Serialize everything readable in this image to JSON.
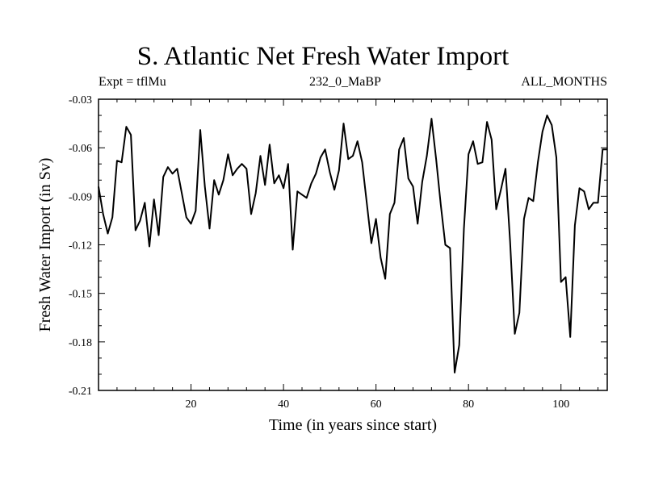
{
  "chart_data": {
    "type": "line",
    "title": "S. Atlantic Net Fresh Water Import",
    "subtitle_left": "Expt = tflMu",
    "subtitle_center": "232_0_MaBP",
    "subtitle_right": "ALL_MONTHS",
    "xlabel": "Time (in years since start)",
    "ylabel": "Fresh Water Import (in Sv)",
    "xlim": [
      0,
      110
    ],
    "ylim": [
      -0.21,
      -0.03
    ],
    "xticks": [
      20,
      40,
      60,
      80,
      100
    ],
    "xtick_labels": [
      "20",
      "40",
      "60",
      "80",
      "100"
    ],
    "yticks": [
      -0.21,
      -0.18,
      -0.15,
      -0.12,
      -0.09,
      -0.06,
      -0.03
    ],
    "ytick_labels": [
      "-0.21",
      "-0.18",
      "-0.15",
      "-0.12",
      "-0.09",
      "-0.06",
      "-0.03"
    ],
    "grid": false,
    "series": [
      {
        "name": "Fresh Water Import",
        "x": [
          0,
          1,
          2,
          3,
          4,
          5,
          6,
          7,
          8,
          9,
          10,
          11,
          12,
          13,
          14,
          15,
          16,
          17,
          18,
          19,
          20,
          21,
          22,
          23,
          24,
          25,
          26,
          27,
          28,
          29,
          30,
          31,
          32,
          33,
          34,
          35,
          36,
          37,
          38,
          39,
          40,
          41,
          42,
          43,
          44,
          45,
          46,
          47,
          48,
          49,
          50,
          51,
          52,
          53,
          54,
          55,
          56,
          57,
          58,
          59,
          60,
          61,
          62,
          63,
          64,
          65,
          66,
          67,
          68,
          69,
          70,
          71,
          72,
          73,
          74,
          75,
          76,
          77,
          78,
          79,
          80,
          81,
          82,
          83,
          84,
          85,
          86,
          87,
          88,
          89,
          90,
          91,
          92,
          93,
          94,
          95,
          96,
          97,
          98,
          99,
          100,
          101,
          102,
          103,
          104,
          105,
          106,
          107,
          108,
          109,
          110
        ],
        "values": [
          -0.084,
          -0.101,
          -0.113,
          -0.103,
          -0.068,
          -0.069,
          -0.047,
          -0.052,
          -0.111,
          -0.105,
          -0.094,
          -0.121,
          -0.092,
          -0.114,
          -0.078,
          -0.072,
          -0.076,
          -0.073,
          -0.088,
          -0.103,
          -0.107,
          -0.099,
          -0.049,
          -0.084,
          -0.11,
          -0.08,
          -0.089,
          -0.08,
          -0.064,
          -0.077,
          -0.073,
          -0.07,
          -0.073,
          -0.101,
          -0.088,
          -0.065,
          -0.083,
          -0.058,
          -0.082,
          -0.077,
          -0.085,
          -0.07,
          -0.123,
          -0.087,
          -0.089,
          -0.091,
          -0.082,
          -0.076,
          -0.066,
          -0.061,
          -0.075,
          -0.086,
          -0.074,
          -0.045,
          -0.067,
          -0.065,
          -0.056,
          -0.069,
          -0.094,
          -0.119,
          -0.104,
          -0.128,
          -0.141,
          -0.101,
          -0.094,
          -0.061,
          -0.054,
          -0.079,
          -0.084,
          -0.107,
          -0.081,
          -0.065,
          -0.042,
          -0.067,
          -0.095,
          -0.12,
          -0.122,
          -0.199,
          -0.182,
          -0.11,
          -0.064,
          -0.056,
          -0.07,
          -0.069,
          -0.044,
          -0.055,
          -0.098,
          -0.086,
          -0.073,
          -0.118,
          -0.175,
          -0.162,
          -0.104,
          -0.091,
          -0.093,
          -0.069,
          -0.05,
          -0.04,
          -0.046,
          -0.066,
          -0.143,
          -0.14,
          -0.177,
          -0.108,
          -0.085,
          -0.087,
          -0.098,
          -0.094,
          -0.094,
          -0.061,
          -0.061
        ]
      }
    ]
  }
}
